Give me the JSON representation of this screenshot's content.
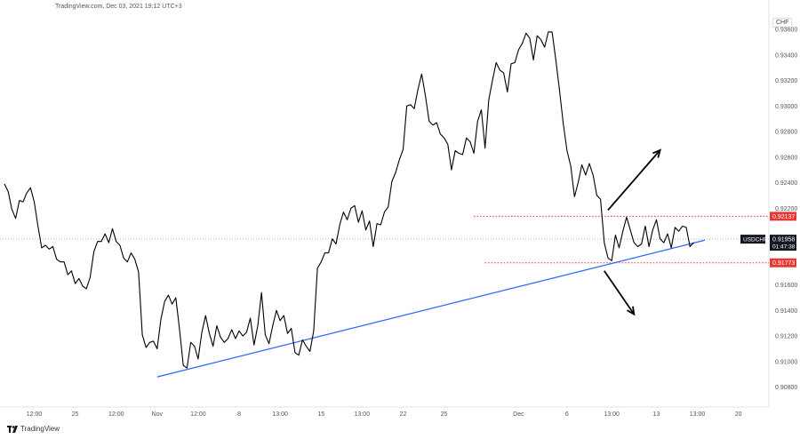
{
  "header": {
    "source_line": "TradingView.com, Dec 03, 2021 19:12 UTC+3"
  },
  "footer": {
    "brand": "TradingView"
  },
  "currency_label": "CHF",
  "colors": {
    "price_line": "#000000",
    "trendline": "#2962ff",
    "level": "#e53935",
    "arrow": "#000000",
    "current_tag": "#131722"
  },
  "chart_data": {
    "type": "line",
    "symbol": "USDCHF",
    "ylim": [
      0.907,
      0.9376
    ],
    "y_ticks": [
      0.936,
      0.934,
      0.932,
      0.93,
      0.928,
      0.926,
      0.924,
      0.922,
      0.916,
      0.914,
      0.912,
      0.91,
      0.908
    ],
    "x_ticks": [
      {
        "i": 8,
        "label": "12:00"
      },
      {
        "i": 19,
        "label": "25"
      },
      {
        "i": 30,
        "label": "12:00"
      },
      {
        "i": 41,
        "label": "Nov"
      },
      {
        "i": 52,
        "label": "12:00"
      },
      {
        "i": 63,
        "label": "8"
      },
      {
        "i": 74,
        "label": "13:00"
      },
      {
        "i": 85,
        "label": "15"
      },
      {
        "i": 96,
        "label": "13:00"
      },
      {
        "i": 107,
        "label": "22"
      },
      {
        "i": 118,
        "label": "25"
      },
      {
        "i": 138,
        "label": "Dec"
      },
      {
        "i": 151,
        "label": "6"
      },
      {
        "i": 163,
        "label": "13:00"
      },
      {
        "i": 175,
        "label": "13"
      },
      {
        "i": 186,
        "label": "13:00"
      },
      {
        "i": 197,
        "label": "20"
      }
    ],
    "x_count": 205,
    "series": [
      {
        "values": [
          0.9239,
          0.9233,
          0.9219,
          0.9212,
          0.9226,
          0.9225,
          0.9232,
          0.9236,
          0.9225,
          0.9206,
          0.9189,
          0.9191,
          0.9188,
          0.919,
          0.918,
          0.9178,
          0.9178,
          0.9168,
          0.9171,
          0.9161,
          0.9165,
          0.9159,
          0.9157,
          0.9166,
          0.9186,
          0.9194,
          0.9194,
          0.92,
          0.9193,
          0.9204,
          0.9194,
          0.9191,
          0.9181,
          0.9178,
          0.9185,
          0.918,
          0.917,
          0.9121,
          0.9111,
          0.9115,
          0.9116,
          0.911,
          0.9133,
          0.9147,
          0.9152,
          0.9145,
          0.915,
          0.9125,
          0.9097,
          0.9095,
          0.9115,
          0.9112,
          0.9102,
          0.9123,
          0.9136,
          0.9122,
          0.9112,
          0.9128,
          0.9119,
          0.9115,
          0.9118,
          0.9125,
          0.9118,
          0.9124,
          0.912,
          0.9123,
          0.9134,
          0.9113,
          0.9128,
          0.9154,
          0.9121,
          0.9114,
          0.9128,
          0.914,
          0.9132,
          0.9136,
          0.9122,
          0.9126,
          0.9107,
          0.9105,
          0.9117,
          0.9112,
          0.9108,
          0.9124,
          0.9173,
          0.9178,
          0.9185,
          0.9185,
          0.9196,
          0.9192,
          0.9207,
          0.9217,
          0.9211,
          0.922,
          0.9222,
          0.9209,
          0.9218,
          0.9203,
          0.921,
          0.919,
          0.9208,
          0.9207,
          0.9217,
          0.9221,
          0.9241,
          0.9248,
          0.9258,
          0.9266,
          0.93,
          0.9301,
          0.9298,
          0.9313,
          0.9325,
          0.9308,
          0.9288,
          0.9285,
          0.9287,
          0.9278,
          0.9275,
          0.927,
          0.925,
          0.9265,
          0.9263,
          0.9262,
          0.9275,
          0.9272,
          0.9263,
          0.9288,
          0.9297,
          0.9267,
          0.9305,
          0.932,
          0.9334,
          0.9328,
          0.9326,
          0.9311,
          0.9333,
          0.9334,
          0.9344,
          0.9349,
          0.9357,
          0.9353,
          0.9336,
          0.9355,
          0.9352,
          0.9346,
          0.9358,
          0.9358,
          0.9336,
          0.9312,
          0.9286,
          0.9265,
          0.9253,
          0.9229,
          0.924,
          0.9254,
          0.9246,
          0.9255,
          0.9246,
          0.923,
          0.9227,
          0.9193,
          0.9181,
          0.9179,
          0.9199,
          0.9189,
          0.9202,
          0.9213,
          0.9203,
          0.9193,
          0.919,
          0.9192,
          0.9206,
          0.919,
          0.9203,
          0.9211,
          0.9196,
          0.9193,
          0.92,
          0.9189,
          0.9205,
          0.9202,
          0.9206,
          0.9205,
          0.919,
          0.9193
        ]
      }
    ],
    "trendline": {
      "from": {
        "i": 41,
        "y": 0.9088
      },
      "to": {
        "i": 188,
        "y": 0.9195
      }
    },
    "levels": [
      {
        "value": 0.92137,
        "label": "0.92137",
        "from_i": 126,
        "to_i": 205
      },
      {
        "value": 0.91773,
        "label": "0.91773",
        "from_i": 129,
        "to_i": 205
      }
    ],
    "current_price": {
      "value": 0.91958,
      "label": "0.91958",
      "countdown": "01:47:38",
      "symbol_tag": "USDCHF"
    },
    "arrows": [
      {
        "from": {
          "i": 162,
          "y": 0.92185
        },
        "to": {
          "i": 176,
          "y": 0.92655
        }
      },
      {
        "from": {
          "i": 161,
          "y": 0.9171
        },
        "to": {
          "i": 169,
          "y": 0.9137
        }
      }
    ]
  }
}
